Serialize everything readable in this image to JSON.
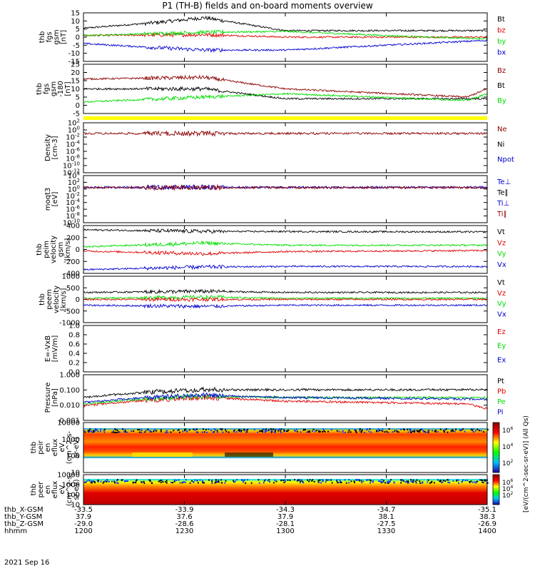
{
  "title": "P1 (TH-B) fields and on-board moments overview",
  "date": "2021 Sep 16",
  "colors": {
    "black": "#000000",
    "red": "#e00000",
    "green": "#00dd00",
    "blue": "#0000cc",
    "darkred": "#8b0000",
    "yellow": "#ffff00"
  },
  "colorbar_label": "[eV/(cm^2-sec-sr-eV)] (All Qs)",
  "ephemeris": {
    "row_labels": [
      "thb_X-GSM",
      "thb_Y-GSM",
      "thb_Z-GSM",
      "hhmm"
    ],
    "columns": [
      {
        "x": "-33.5",
        "y": "37.9",
        "z": "-29.0",
        "t": "1200"
      },
      {
        "x": "-33.9",
        "y": "37.6",
        "z": "-28.6",
        "t": "1230"
      },
      {
        "x": "-34.3",
        "y": "37.9",
        "z": "-28.1",
        "t": "1300"
      },
      {
        "x": "-34.7",
        "y": "38.1",
        "z": "-27.5",
        "t": "1330"
      },
      {
        "x": "-35.1",
        "y": "38.3",
        "z": "-26.9",
        "t": "1400"
      }
    ]
  },
  "chart_data": [
    {
      "type": "line",
      "ylabel_lines": [
        "thb",
        "fgs",
        "gsm",
        "[nT]"
      ],
      "ylim": [
        -15,
        15
      ],
      "yticks": [
        "15",
        "10",
        "5",
        "0",
        "-5",
        "-10",
        "-15"
      ],
      "legend": [
        "Bt",
        "bz",
        "by",
        "bx"
      ],
      "series": [
        {
          "name": "Bt",
          "color": "#000000",
          "segments": [
            [
              0,
              5.5
            ],
            [
              0.18,
              9
            ],
            [
              0.3,
              12
            ],
            [
              0.5,
              4
            ],
            [
              1,
              4
            ]
          ]
        },
        {
          "name": "bz",
          "color": "#e00000",
          "segments": [
            [
              0,
              1
            ],
            [
              0.3,
              1.5
            ],
            [
              0.5,
              0
            ],
            [
              1,
              0
            ]
          ]
        },
        {
          "name": "by",
          "color": "#00dd00",
          "segments": [
            [
              0,
              1
            ],
            [
              0.3,
              3
            ],
            [
              0.5,
              3.5
            ],
            [
              0.85,
              0
            ],
            [
              1,
              -1
            ]
          ]
        },
        {
          "name": "bx",
          "color": "#0000cc",
          "segments": [
            [
              0,
              -4
            ],
            [
              0.18,
              -6.5
            ],
            [
              0.3,
              -8
            ],
            [
              0.5,
              -8
            ],
            [
              1,
              -2
            ]
          ]
        }
      ]
    },
    {
      "type": "line",
      "ylabel_lines": [
        "thb",
        "fgs",
        "gsm",
        "-180",
        "[nT]"
      ],
      "ylim": [
        -5,
        25
      ],
      "yticks": [
        "25",
        "20",
        "15",
        "10",
        "5",
        "0",
        "-5"
      ],
      "legend": [
        "Bz",
        "Bt",
        "By"
      ],
      "series": [
        {
          "name": "Bz",
          "color": "#8b0000",
          "segments": [
            [
              0,
              16
            ],
            [
              0.3,
              17
            ],
            [
              0.5,
              10
            ],
            [
              0.95,
              5
            ],
            [
              1,
              10
            ]
          ]
        },
        {
          "name": "Bt",
          "color": "#000000",
          "segments": [
            [
              0,
              10
            ],
            [
              0.3,
              10
            ],
            [
              0.5,
              4
            ],
            [
              1,
              4
            ]
          ]
        },
        {
          "name": "By",
          "color": "#00dd00",
          "segments": [
            [
              0,
              2
            ],
            [
              0.3,
              5
            ],
            [
              0.5,
              7
            ],
            [
              0.95,
              3
            ],
            [
              1,
              7
            ]
          ]
        }
      ]
    },
    {
      "type": "line",
      "ylabel_lines": [
        "Density",
        "[cm-3]"
      ],
      "ylog": true,
      "ylim": [
        -12,
        2
      ],
      "yticks": [
        "10^2",
        "10^0",
        "10^-2",
        "10^-4",
        "10^-6",
        "10^-8",
        "10^-10",
        "10^-12"
      ],
      "legend": [
        "Ne",
        "Ni",
        "Npot"
      ],
      "series": [
        {
          "name": "Ne",
          "color": "#8b0000",
          "segments": [
            [
              0,
              0.1
            ],
            [
              1,
              0.1
            ]
          ]
        }
      ]
    },
    {
      "type": "line",
      "ylabel_lines": [
        "moqt3",
        "[eV]"
      ],
      "ylog": true,
      "ylim": [
        -10,
        4
      ],
      "yticks": [
        "10^4",
        "10^2",
        "10^0",
        "10^-2",
        "10^-4",
        "10^-6",
        "10^-8",
        "10^-10"
      ],
      "legend": [
        "Te⊥",
        "Te∥",
        "Ti⊥",
        "Ti∥"
      ],
      "series": [
        {
          "name": "Te⊥",
          "color": "#0000cc",
          "segments": [
            [
              0,
              3.2
            ],
            [
              1,
              3.3
            ]
          ]
        },
        {
          "name": "Ti∥",
          "color": "#8b0000",
          "segments": [
            [
              0,
              2.7
            ],
            [
              1,
              2.6
            ]
          ]
        }
      ]
    },
    {
      "type": "line",
      "ylabel_lines": [
        "thb",
        "peim",
        "velocity",
        "gsm",
        "[km/s]"
      ],
      "ylim": [
        -450,
        450
      ],
      "yticks": [
        "400",
        "200",
        "0",
        "-200",
        "-400"
      ],
      "legend": [
        "Vt",
        "Vz",
        "Vy",
        "Vx"
      ],
      "series": [
        {
          "name": "Vt",
          "color": "#000000",
          "segments": [
            [
              0,
              370
            ],
            [
              0.3,
              340
            ],
            [
              1,
              330
            ]
          ]
        },
        {
          "name": "Vy",
          "color": "#00dd00",
          "segments": [
            [
              0,
              50
            ],
            [
              0.3,
              120
            ],
            [
              0.5,
              80
            ],
            [
              1,
              80
            ]
          ]
        },
        {
          "name": "Vz",
          "color": "#e00000",
          "segments": [
            [
              0,
              -30
            ],
            [
              0.3,
              -80
            ],
            [
              0.5,
              -40
            ],
            [
              1,
              -20
            ]
          ]
        },
        {
          "name": "Vx",
          "color": "#0000cc",
          "segments": [
            [
              0,
              -380
            ],
            [
              0.3,
              -330
            ],
            [
              0.5,
              -320
            ],
            [
              1,
              -320
            ]
          ]
        }
      ]
    },
    {
      "type": "line",
      "ylabel_lines": [
        "thb",
        "peem",
        "velocity",
        "[km/s]"
      ],
      "ylim": [
        -1000,
        1000
      ],
      "yticks": [
        "1000",
        "500",
        "0",
        "-500",
        "-1000"
      ],
      "legend": [
        "Vt",
        "Vz",
        "Vy",
        "Vx"
      ],
      "series": [
        {
          "name": "Vt",
          "color": "#000000",
          "segments": [
            [
              0,
              300
            ],
            [
              0.3,
              350
            ],
            [
              0.5,
              300
            ],
            [
              1,
              300
            ]
          ]
        },
        {
          "name": "Vy",
          "color": "#00dd00",
          "segments": [
            [
              0,
              50
            ],
            [
              0.3,
              100
            ],
            [
              0.5,
              50
            ],
            [
              1,
              50
            ]
          ]
        },
        {
          "name": "Vz",
          "color": "#e00000",
          "segments": [
            [
              0,
              0
            ],
            [
              1,
              0
            ]
          ]
        },
        {
          "name": "Vx",
          "color": "#0000cc",
          "segments": [
            [
              0,
              -250
            ],
            [
              0.3,
              -300
            ],
            [
              0.5,
              -250
            ],
            [
              1,
              -250
            ]
          ]
        }
      ]
    },
    {
      "type": "line",
      "ylabel_lines": [
        "E=-VxB",
        "[mV/m]"
      ],
      "ylim": [
        0,
        1
      ],
      "yticks": [
        "1.0",
        "0.8",
        "0.6",
        "0.4",
        "0.2",
        "0.0"
      ],
      "legend": [
        "Ez",
        "Ey",
        "Ex"
      ],
      "series": []
    },
    {
      "type": "line",
      "ylabel_lines": [
        "Pressure",
        "[nPa]"
      ],
      "ylog": true,
      "ylim": [
        -2.7,
        0.1
      ],
      "yticks": [
        "1.000",
        "0.100",
        "0.010",
        "0.001"
      ],
      "legend": [
        "Pt",
        "Pb",
        "Pe",
        "Pi"
      ],
      "series": [
        {
          "name": "Pt",
          "color": "#000000",
          "segments": [
            [
              0,
              0.05
            ],
            [
              0.15,
              0.1
            ],
            [
              0.3,
              0.15
            ],
            [
              0.5,
              0.15
            ],
            [
              1,
              0.15
            ]
          ]
        },
        {
          "name": "Pb",
          "color": "#e00000",
          "segments": [
            [
              0,
              0.015
            ],
            [
              0.3,
              0.05
            ],
            [
              0.5,
              0.03
            ],
            [
              0.95,
              0.02
            ],
            [
              1,
              0.01
            ]
          ]
        },
        {
          "name": "Pe",
          "color": "#00dd00",
          "segments": [
            [
              0,
              0.02
            ],
            [
              0.3,
              0.06
            ],
            [
              0.5,
              0.05
            ],
            [
              1,
              0.05
            ]
          ]
        },
        {
          "name": "Pi",
          "color": "#0000cc",
          "segments": [
            [
              0,
              0.025
            ],
            [
              0.3,
              0.07
            ],
            [
              0.5,
              0.05
            ],
            [
              1,
              0.04
            ]
          ]
        }
      ]
    },
    {
      "type": "heatmap",
      "ylabel_lines": [
        "thb",
        "peir",
        "en",
        "eflux",
        "eV",
        "(cm^2-s-",
        "sr-eV)"
      ],
      "ylog": true,
      "ylim": [
        0.7,
        4.2
      ],
      "yticks": [
        "10000",
        "1000",
        "100",
        "10"
      ],
      "colorbar_ticks": [
        "10^6",
        "10^4",
        "10^2"
      ],
      "zlabel": "[eV/(cm^2-s-sr-eV)]"
    },
    {
      "type": "heatmap",
      "ylabel_lines": [
        "thb",
        "peer",
        "en",
        "eflux",
        "eV",
        "(cm^2-s-",
        "sr-eV)"
      ],
      "ylog": true,
      "ylim": [
        0.7,
        4.2
      ],
      "yticks": [
        "10000",
        "1000",
        "100",
        "10"
      ],
      "colorbar_ticks": [
        "10^6",
        "10^4",
        "10^2"
      ],
      "zlabel": "[eV/(cm^2-s-sr-eV)]"
    }
  ]
}
